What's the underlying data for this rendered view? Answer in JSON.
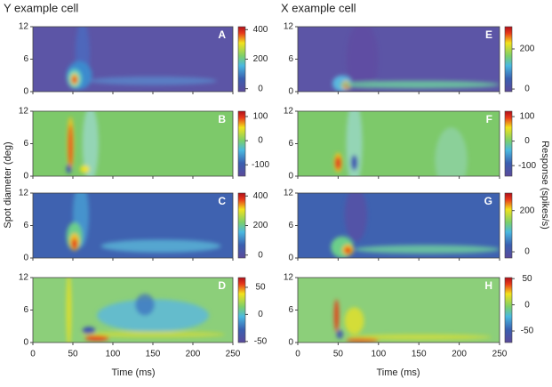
{
  "title_left": "Y example cell",
  "title_right": "X example cell",
  "y_label": "Spot diameter (deg)",
  "x_label": "Time (ms)",
  "colorbar_label": "Response (spikes/s)",
  "chart_data": [
    {
      "type": "heatmap",
      "title": "A",
      "xlim": [
        0,
        250
      ],
      "xticks": [
        0,
        50,
        100,
        150,
        200,
        250
      ],
      "ylim": [
        0,
        12
      ],
      "yticks": [
        0,
        6,
        12
      ],
      "clim": [
        -20,
        420
      ],
      "cticks": [
        0,
        200,
        400
      ]
    },
    {
      "type": "heatmap",
      "title": "B",
      "xlim": [
        0,
        250
      ],
      "xticks": [
        0,
        50,
        100,
        150,
        200,
        250
      ],
      "ylim": [
        0,
        12
      ],
      "yticks": [
        0,
        6,
        12
      ],
      "clim": [
        -147,
        122
      ],
      "cticks": [
        -100,
        0,
        100
      ]
    },
    {
      "type": "heatmap",
      "title": "C",
      "xlim": [
        0,
        250
      ],
      "xticks": [
        0,
        50,
        100,
        150,
        200,
        250
      ],
      "ylim": [
        0,
        12
      ],
      "yticks": [
        0,
        6,
        12
      ],
      "clim": [
        -20,
        420
      ],
      "cticks": [
        0,
        200,
        400
      ]
    },
    {
      "type": "heatmap",
      "title": "D",
      "xlim": [
        0,
        250
      ],
      "xticks": [
        0,
        50,
        100,
        150,
        200,
        250
      ],
      "ylim": [
        0,
        12
      ],
      "yticks": [
        0,
        6,
        12
      ],
      "clim": [
        -52,
        68
      ],
      "cticks": [
        -50,
        0,
        50
      ]
    },
    {
      "type": "heatmap",
      "title": "E",
      "xlim": [
        0,
        250
      ],
      "xticks": [
        0,
        50,
        100,
        150,
        200,
        250
      ],
      "ylim": [
        0,
        12
      ],
      "yticks": [
        0,
        6,
        12
      ],
      "clim": [
        -13,
        311
      ],
      "cticks": [
        0,
        200
      ]
    },
    {
      "type": "heatmap",
      "title": "F",
      "xlim": [
        0,
        250
      ],
      "xticks": [
        0,
        50,
        100,
        150,
        200,
        250
      ],
      "ylim": [
        0,
        12
      ],
      "yticks": [
        0,
        6,
        12
      ],
      "clim": [
        -143,
        122
      ],
      "cticks": [
        -100,
        0,
        100
      ]
    },
    {
      "type": "heatmap",
      "title": "G",
      "xlim": [
        0,
        250
      ],
      "xticks": [
        0,
        50,
        100,
        150,
        200,
        250
      ],
      "ylim": [
        0,
        12
      ],
      "yticks": [
        0,
        6,
        12
      ],
      "clim": [
        -30,
        285
      ],
      "cticks": [
        0,
        200
      ]
    },
    {
      "type": "heatmap",
      "title": "H",
      "xlim": [
        0,
        250
      ],
      "xticks": [
        0,
        50,
        100,
        150,
        200,
        250
      ],
      "ylim": [
        0,
        12
      ],
      "yticks": [
        0,
        6,
        12
      ],
      "clim": [
        -72,
        52
      ],
      "cticks": [
        -50,
        0,
        50
      ]
    }
  ]
}
